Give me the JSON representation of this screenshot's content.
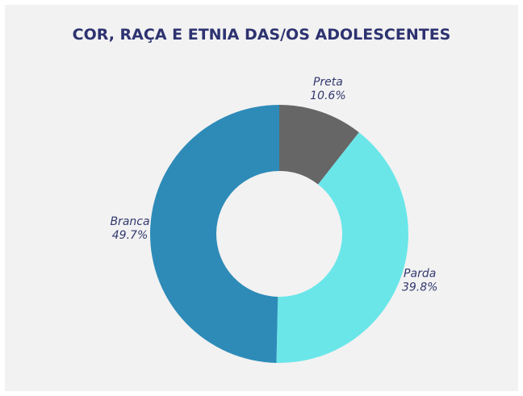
{
  "chart_data": {
    "type": "donut",
    "title": "COR, RAÇA E ETNIA DAS/OS ADOLESCENTES",
    "categories": [
      "Preta",
      "Parda",
      "Branca"
    ],
    "values": [
      10.6,
      39.8,
      49.7
    ],
    "value_labels": [
      "10.6%",
      "39.8%",
      "49.7%"
    ],
    "colors": [
      "#666666",
      "#6ae6e9",
      "#2e8bb8"
    ]
  }
}
